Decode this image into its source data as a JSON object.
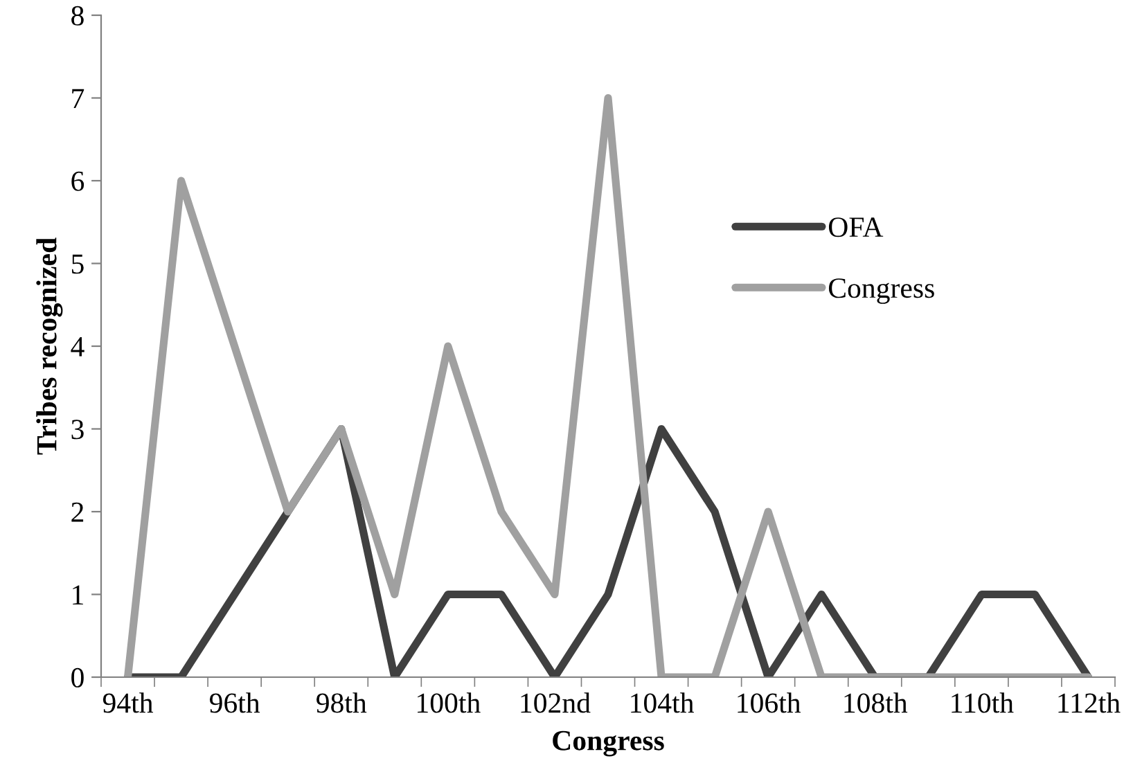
{
  "chart_data": {
    "type": "line",
    "xlabel": "Congress",
    "ylabel": "Tribes recognized",
    "categories": [
      "94th",
      null,
      "96th",
      null,
      "98th",
      null,
      "100th",
      null,
      "102nd",
      null,
      "104th",
      null,
      "106th",
      null,
      "108th",
      null,
      "110th",
      null,
      "112th"
    ],
    "series": [
      {
        "name": "OFA",
        "color": "#404040",
        "values": [
          0,
          0,
          1,
          2,
          3,
          0,
          1,
          1,
          0,
          1,
          3,
          2,
          0,
          1,
          0,
          0,
          1,
          1,
          0
        ]
      },
      {
        "name": "Congress",
        "color": "#a0a0a0",
        "values": [
          0,
          6,
          4,
          2,
          3,
          1,
          4,
          2,
          1,
          7,
          0,
          0,
          2,
          0,
          0,
          0,
          0,
          0,
          0
        ]
      }
    ],
    "ylim": [
      0,
      8
    ],
    "yticks": [
      0,
      1,
      2,
      3,
      4,
      5,
      6,
      7,
      8
    ],
    "grid": false,
    "legend": "right",
    "marker": "none",
    "line_style": "solid"
  }
}
